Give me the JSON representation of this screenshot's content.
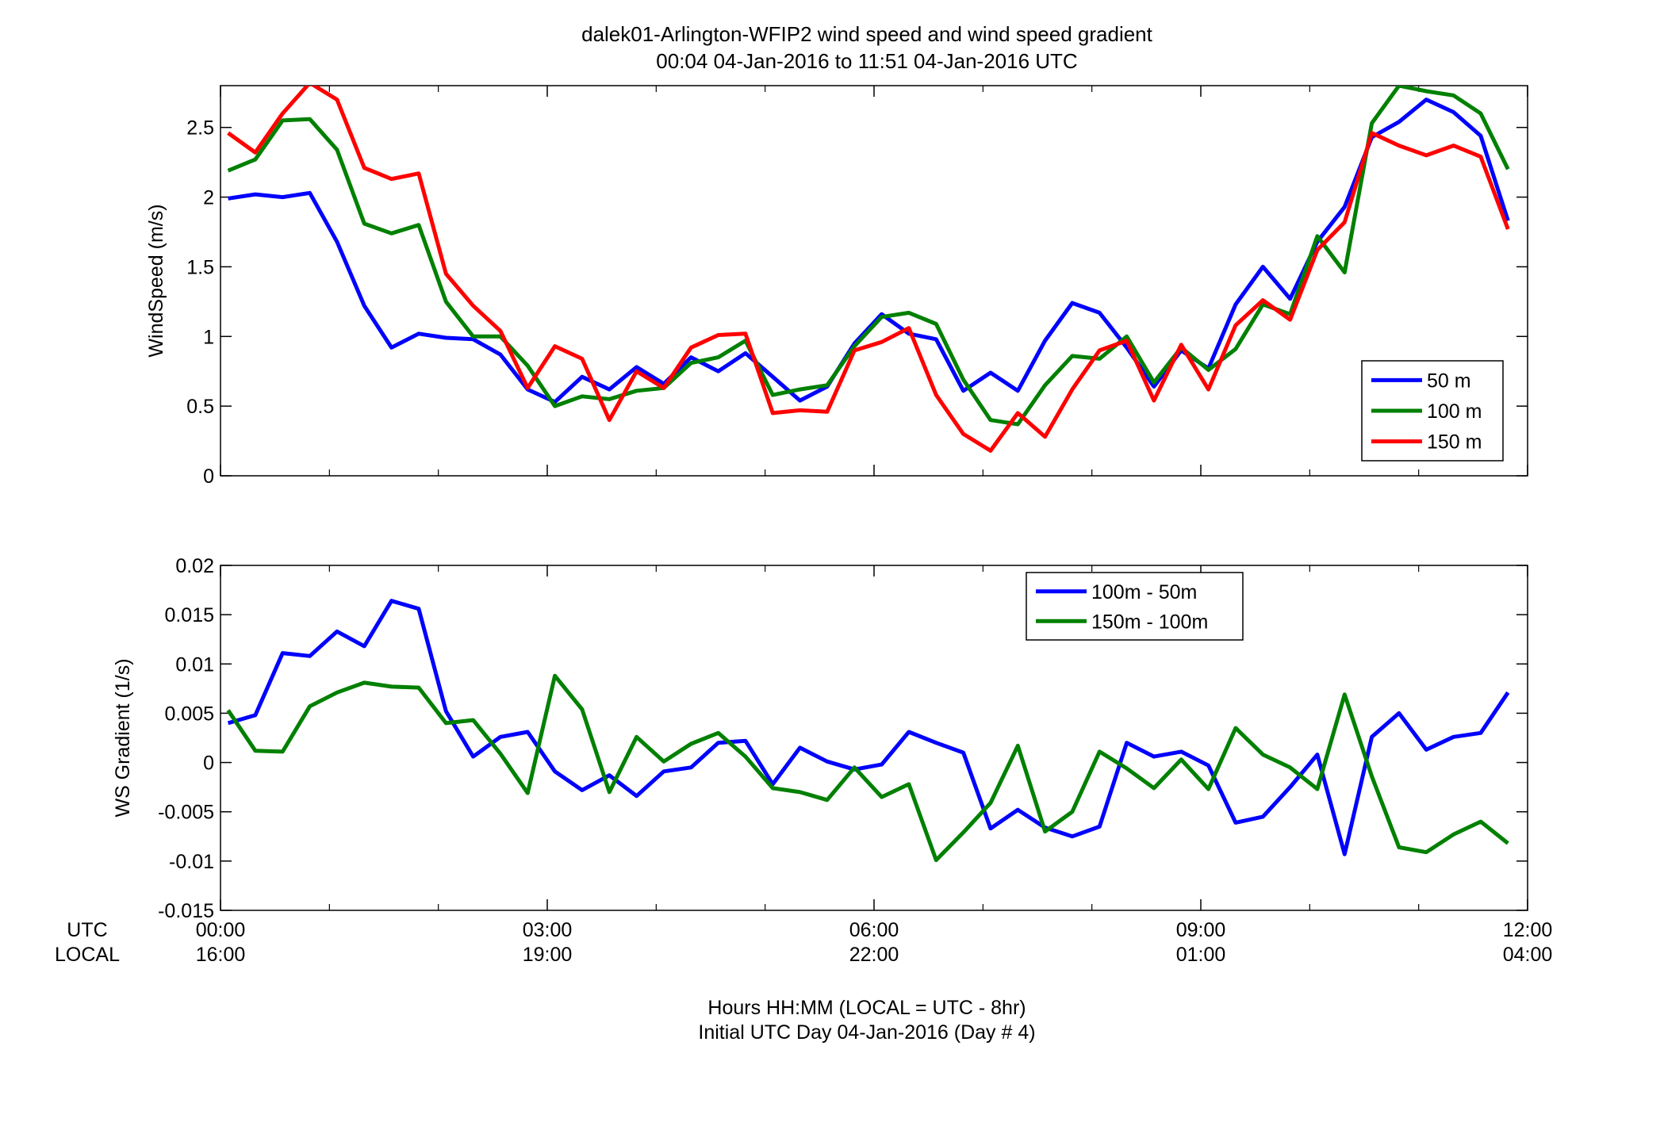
{
  "title": "dalek01-Arlington-WFIP2  wind speed and wind speed gradient",
  "subtitle": "00:04 04-Jan-2016 to 11:51 04-Jan-2016  UTC",
  "xlabel_line1": "Hours HH:MM  (LOCAL = UTC - 8hr)",
  "xlabel_line2": "Initial UTC Day 04-Jan-2016 (Day # 4)",
  "row_label_utc": "UTC",
  "row_label_local": "LOCAL",
  "x_ticks_utc": [
    "00:00",
    "03:00",
    "06:00",
    "09:00",
    "12:00"
  ],
  "x_ticks_local": [
    "16:00",
    "19:00",
    "22:00",
    "01:00",
    "04:00"
  ],
  "chart_data": [
    {
      "type": "line",
      "ylabel": "WindSpeed (m/s)",
      "xlim": [
        0,
        12
      ],
      "ylim": [
        0,
        2.8
      ],
      "yticks": [
        0,
        0.5,
        1,
        1.5,
        2,
        2.5
      ],
      "ytick_labels": [
        "0",
        "0.5",
        "1",
        "1.5",
        "2",
        "2.5"
      ],
      "grid": false,
      "legend_position": "bottom-right",
      "x": [
        0.07,
        0.32,
        0.57,
        0.82,
        1.07,
        1.32,
        1.57,
        1.82,
        2.07,
        2.32,
        2.57,
        2.82,
        3.07,
        3.32,
        3.57,
        3.82,
        4.07,
        4.32,
        4.57,
        4.82,
        5.07,
        5.32,
        5.57,
        5.82,
        6.07,
        6.32,
        6.57,
        6.82,
        7.07,
        7.32,
        7.57,
        7.82,
        8.07,
        8.32,
        8.57,
        8.82,
        9.07,
        9.32,
        9.57,
        9.82,
        10.07,
        10.32,
        10.57,
        10.82,
        11.07,
        11.32,
        11.57,
        11.82
      ],
      "series": [
        {
          "name": "50 m",
          "color": "#0000ff",
          "values": [
            1.99,
            2.02,
            2.0,
            2.03,
            1.68,
            1.22,
            0.92,
            1.02,
            0.99,
            0.98,
            0.87,
            0.62,
            0.53,
            0.71,
            0.62,
            0.78,
            0.66,
            0.85,
            0.75,
            0.88,
            0.71,
            0.54,
            0.64,
            0.95,
            1.16,
            1.02,
            0.98,
            0.61,
            0.74,
            0.61,
            0.97,
            1.24,
            1.17,
            0.92,
            0.64,
            0.9,
            0.77,
            1.23,
            1.5,
            1.27,
            1.68,
            1.93,
            2.43,
            2.54,
            2.7,
            2.61,
            2.44,
            1.83
          ]
        },
        {
          "name": "100 m",
          "color": "#008000",
          "values": [
            2.19,
            2.27,
            2.55,
            2.56,
            2.34,
            1.81,
            1.74,
            1.8,
            1.25,
            1.0,
            1.0,
            0.79,
            0.5,
            0.57,
            0.55,
            0.61,
            0.63,
            0.81,
            0.85,
            0.97,
            0.58,
            0.62,
            0.65,
            0.93,
            1.14,
            1.17,
            1.09,
            0.69,
            0.4,
            0.37,
            0.65,
            0.86,
            0.84,
            1.0,
            0.67,
            0.92,
            0.76,
            0.91,
            1.23,
            1.16,
            1.72,
            1.46,
            2.53,
            2.8,
            2.76,
            2.73,
            2.6,
            2.2
          ]
        },
        {
          "name": "150 m",
          "color": "#ff0000",
          "values": [
            2.46,
            2.32,
            2.6,
            2.82,
            2.7,
            2.21,
            2.13,
            2.17,
            1.45,
            1.22,
            1.04,
            0.63,
            0.93,
            0.84,
            0.4,
            0.75,
            0.63,
            0.92,
            1.01,
            1.02,
            0.45,
            0.47,
            0.46,
            0.9,
            0.96,
            1.06,
            0.58,
            0.3,
            0.18,
            0.45,
            0.28,
            0.62,
            0.9,
            0.97,
            0.54,
            0.94,
            0.62,
            1.08,
            1.26,
            1.12,
            1.62,
            1.82,
            2.46,
            2.37,
            2.3,
            2.37,
            2.29,
            1.77
          ]
        }
      ]
    },
    {
      "type": "line",
      "ylabel": "WS Gradient (1/s)",
      "xlim": [
        0,
        12
      ],
      "ylim": [
        -0.015,
        0.02
      ],
      "yticks": [
        -0.015,
        -0.01,
        -0.005,
        0,
        0.005,
        0.01,
        0.015,
        0.02
      ],
      "ytick_labels": [
        "-0.015",
        "-0.01",
        "-0.005",
        "0",
        "0.005",
        "0.01",
        "0.015",
        "0.02"
      ],
      "grid": false,
      "legend_position": "top-right",
      "x": [
        0.07,
        0.32,
        0.57,
        0.82,
        1.07,
        1.32,
        1.57,
        1.82,
        2.07,
        2.32,
        2.57,
        2.82,
        3.07,
        3.32,
        3.57,
        3.82,
        4.07,
        4.32,
        4.57,
        4.82,
        5.07,
        5.32,
        5.57,
        5.82,
        6.07,
        6.32,
        6.57,
        6.82,
        7.07,
        7.32,
        7.57,
        7.82,
        8.07,
        8.32,
        8.57,
        8.82,
        9.07,
        9.32,
        9.57,
        9.82,
        10.07,
        10.32,
        10.57,
        10.82,
        11.07,
        11.32,
        11.57,
        11.82
      ],
      "series": [
        {
          "name": "100m - 50m",
          "color": "#0000ff",
          "values": [
            0.004,
            0.0048,
            0.0111,
            0.0108,
            0.0133,
            0.0118,
            0.0164,
            0.0156,
            0.0052,
            0.0006,
            0.0026,
            0.0031,
            -0.0009,
            -0.0028,
            -0.0013,
            -0.0034,
            -0.0009,
            -0.0005,
            0.002,
            0.0022,
            -0.0022,
            0.0015,
            0.0001,
            -0.0007,
            -0.0002,
            0.0031,
            0.002,
            0.001,
            -0.0067,
            -0.0048,
            -0.0066,
            -0.0075,
            -0.0065,
            0.002,
            0.0006,
            0.0011,
            -0.0003,
            -0.0061,
            -0.0055,
            -0.0025,
            0.0008,
            -0.0093,
            0.0026,
            0.005,
            0.0013,
            0.0026,
            0.003,
            0.0071
          ]
        },
        {
          "name": "150m - 100m",
          "color": "#008000",
          "values": [
            0.0053,
            0.0012,
            0.0011,
            0.0057,
            0.0071,
            0.0081,
            0.0077,
            0.0076,
            0.004,
            0.0043,
            0.0009,
            -0.0031,
            0.0088,
            0.0054,
            -0.003,
            0.0026,
            0.0001,
            0.0019,
            0.003,
            0.0006,
            -0.0026,
            -0.003,
            -0.0038,
            -0.0005,
            -0.0035,
            -0.0022,
            -0.0099,
            -0.0071,
            -0.0041,
            0.0017,
            -0.007,
            -0.005,
            0.0011,
            -0.0006,
            -0.0026,
            0.0003,
            -0.0027,
            0.0035,
            0.0008,
            -0.0005,
            -0.0027,
            0.0069,
            -0.0014,
            -0.0086,
            -0.0091,
            -0.0073,
            -0.006,
            -0.0082
          ]
        }
      ]
    }
  ]
}
